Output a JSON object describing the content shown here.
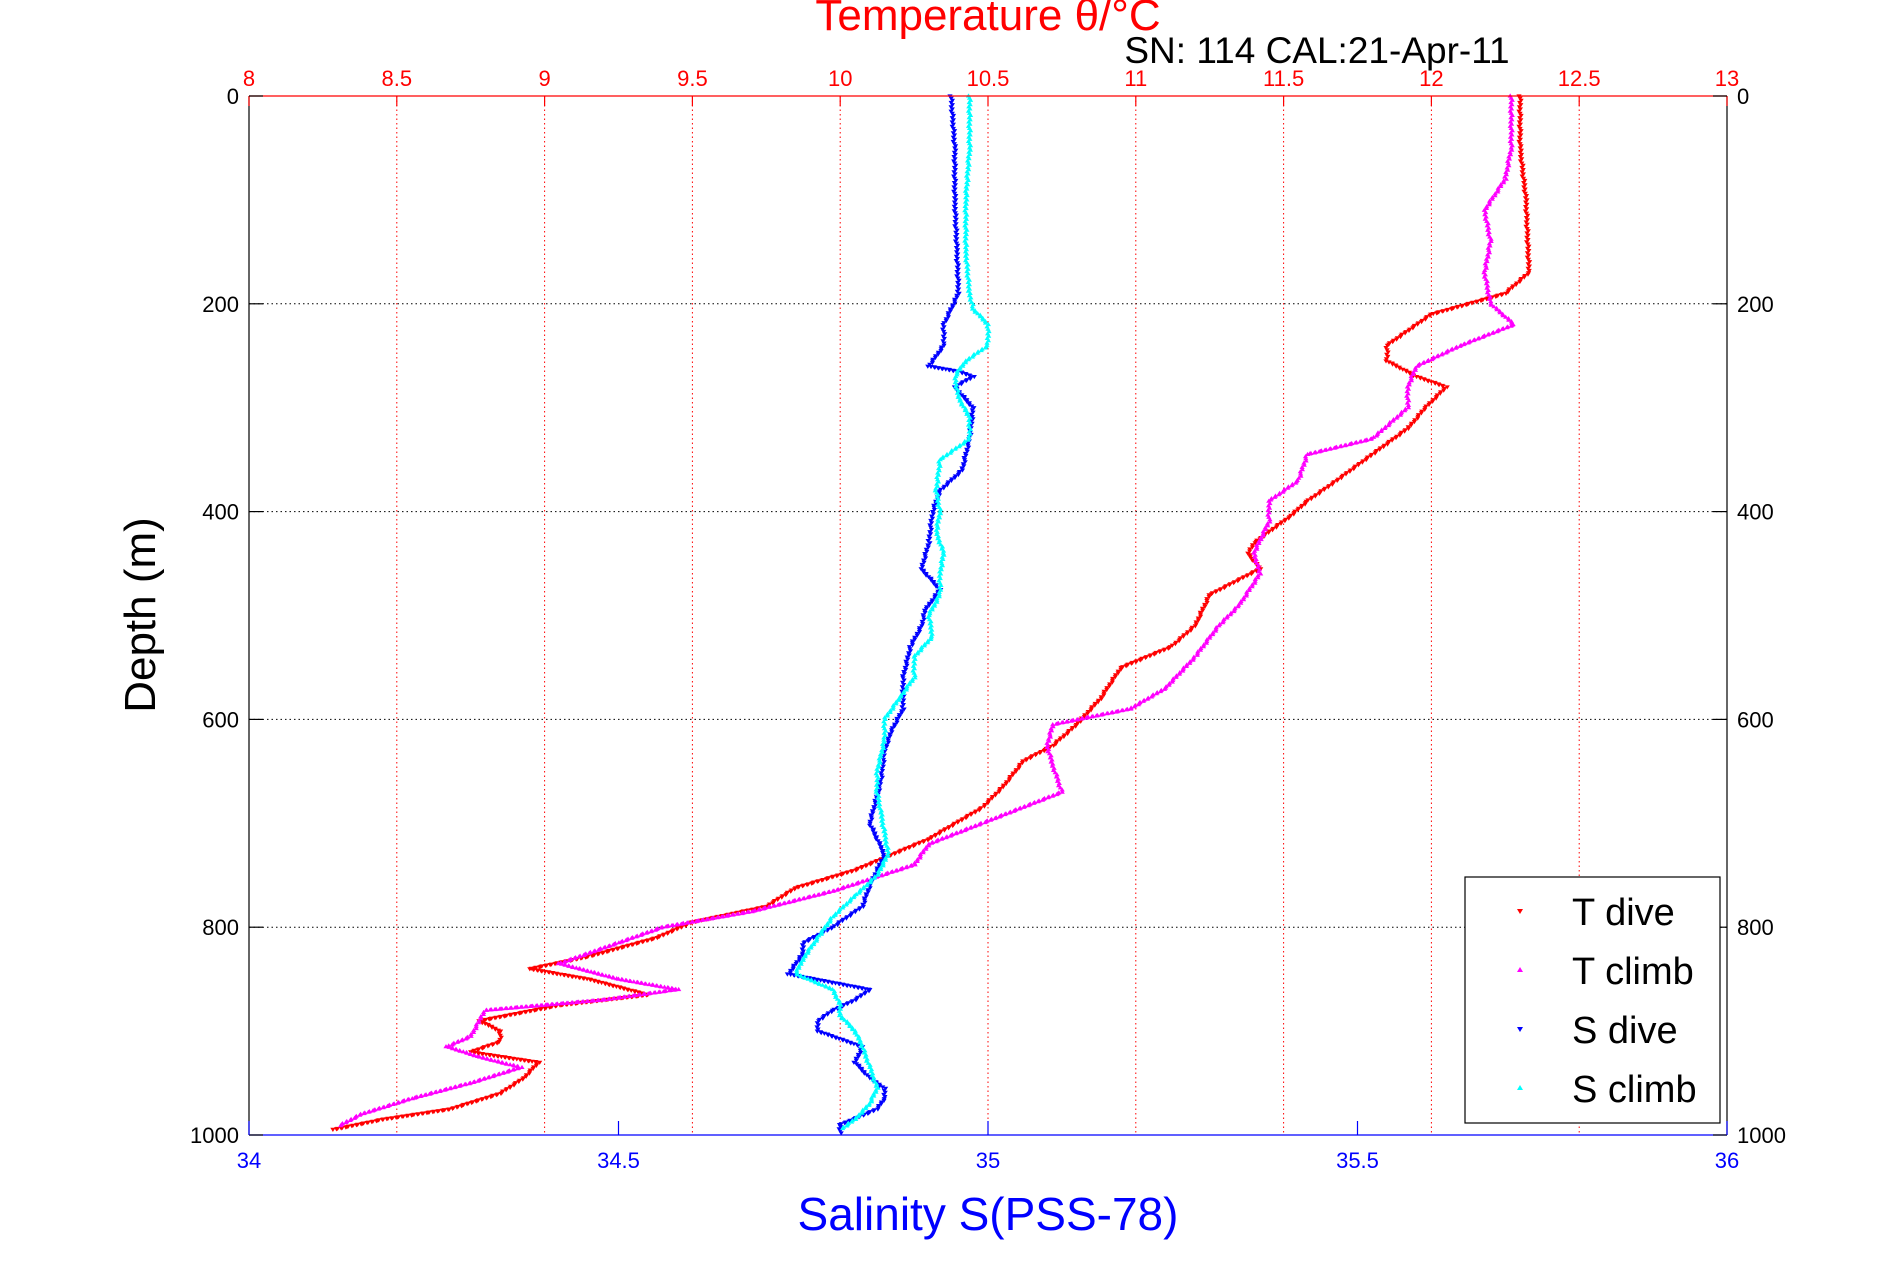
{
  "chart_data": {
    "type": "scatter",
    "title": "Temperature θ/°C",
    "subtitle": "SN: 114  CAL:21-Apr-11",
    "xlabel": "Salinity S(PSS-78)",
    "ylabel": "Depth (m)",
    "x_top": {
      "label": "Temperature θ/°C",
      "range": [
        8,
        13
      ],
      "ticks": [
        "8",
        "8.5",
        "9",
        "9.5",
        "10",
        "10.5",
        "11",
        "11.5",
        "12",
        "12.5",
        "13"
      ]
    },
    "x_bottom": {
      "label": "Salinity S(PSS-78)",
      "range": [
        34,
        36
      ],
      "ticks": [
        "34",
        "34.5",
        "35",
        "35.5",
        "36"
      ]
    },
    "y": {
      "label": "Depth (m)",
      "range": [
        0,
        1000
      ],
      "reversed": true,
      "ticks": [
        "0",
        "200",
        "400",
        "600",
        "800",
        "1000"
      ]
    },
    "grid": true,
    "legend_position": "bottom-right",
    "series": [
      {
        "name": "T dive",
        "axis": "temperature",
        "color": "#ff0000",
        "marker": "triangle-down",
        "points": [
          [
            12.3,
            0
          ],
          [
            12.3,
            50
          ],
          [
            12.32,
            100
          ],
          [
            12.33,
            170
          ],
          [
            12.25,
            190
          ],
          [
            12.0,
            210
          ],
          [
            11.85,
            240
          ],
          [
            11.85,
            255
          ],
          [
            11.95,
            270
          ],
          [
            12.05,
            280
          ],
          [
            11.98,
            300
          ],
          [
            11.92,
            320
          ],
          [
            11.8,
            345
          ],
          [
            11.68,
            370
          ],
          [
            11.58,
            390
          ],
          [
            11.52,
            405
          ],
          [
            11.4,
            430
          ],
          [
            11.38,
            440
          ],
          [
            11.42,
            455
          ],
          [
            11.25,
            480
          ],
          [
            11.2,
            510
          ],
          [
            11.12,
            530
          ],
          [
            10.95,
            550
          ],
          [
            10.88,
            580
          ],
          [
            10.8,
            605
          ],
          [
            10.72,
            625
          ],
          [
            10.62,
            640
          ],
          [
            10.55,
            665
          ],
          [
            10.48,
            685
          ],
          [
            10.3,
            715
          ],
          [
            10.05,
            745
          ],
          [
            9.85,
            762
          ],
          [
            9.75,
            780
          ],
          [
            9.5,
            795
          ],
          [
            9.38,
            810
          ],
          [
            9.15,
            828
          ],
          [
            8.95,
            840
          ],
          [
            9.15,
            850
          ],
          [
            9.35,
            865
          ],
          [
            9.05,
            875
          ],
          [
            8.78,
            890
          ],
          [
            8.85,
            900
          ],
          [
            8.85,
            910
          ],
          [
            8.75,
            920
          ],
          [
            8.98,
            930
          ],
          [
            8.93,
            945
          ],
          [
            8.85,
            960
          ],
          [
            8.68,
            975
          ],
          [
            8.45,
            985
          ],
          [
            8.28,
            995
          ]
        ]
      },
      {
        "name": "T climb",
        "axis": "temperature",
        "color": "#ff00ff",
        "marker": "triangle-up",
        "points": [
          [
            12.27,
            0
          ],
          [
            12.27,
            50
          ],
          [
            12.25,
            80
          ],
          [
            12.18,
            110
          ],
          [
            12.2,
            140
          ],
          [
            12.18,
            170
          ],
          [
            12.2,
            200
          ],
          [
            12.28,
            220
          ],
          [
            12.1,
            240
          ],
          [
            11.95,
            260
          ],
          [
            11.92,
            280
          ],
          [
            11.92,
            300
          ],
          [
            11.8,
            330
          ],
          [
            11.58,
            345
          ],
          [
            11.55,
            370
          ],
          [
            11.45,
            390
          ],
          [
            11.45,
            410
          ],
          [
            11.4,
            440
          ],
          [
            11.42,
            460
          ],
          [
            11.35,
            490
          ],
          [
            11.28,
            510
          ],
          [
            11.2,
            540
          ],
          [
            11.1,
            570
          ],
          [
            10.98,
            590
          ],
          [
            10.72,
            605
          ],
          [
            10.7,
            625
          ],
          [
            10.72,
            645
          ],
          [
            10.75,
            670
          ],
          [
            10.48,
            700
          ],
          [
            10.3,
            720
          ],
          [
            10.25,
            740
          ],
          [
            9.98,
            765
          ],
          [
            9.7,
            785
          ],
          [
            9.4,
            800
          ],
          [
            9.25,
            815
          ],
          [
            9.05,
            835
          ],
          [
            9.25,
            850
          ],
          [
            9.45,
            860
          ],
          [
            9.2,
            870
          ],
          [
            8.8,
            880
          ],
          [
            8.78,
            890
          ],
          [
            8.75,
            905
          ],
          [
            8.67,
            915
          ],
          [
            8.78,
            925
          ],
          [
            8.92,
            935
          ],
          [
            8.75,
            950
          ],
          [
            8.55,
            965
          ],
          [
            8.38,
            980
          ],
          [
            8.3,
            992
          ]
        ]
      },
      {
        "name": "S dive",
        "axis": "salinity",
        "color": "#0000ff",
        "marker": "triangle-down",
        "points": [
          [
            34.95,
            0
          ],
          [
            34.955,
            50
          ],
          [
            34.955,
            100
          ],
          [
            34.958,
            150
          ],
          [
            34.96,
            190
          ],
          [
            34.94,
            220
          ],
          [
            34.94,
            240
          ],
          [
            34.92,
            260
          ],
          [
            34.96,
            265
          ],
          [
            34.98,
            270
          ],
          [
            34.955,
            280
          ],
          [
            34.98,
            300
          ],
          [
            34.975,
            330
          ],
          [
            34.965,
            360
          ],
          [
            34.935,
            380
          ],
          [
            34.925,
            400
          ],
          [
            34.92,
            430
          ],
          [
            34.91,
            455
          ],
          [
            34.935,
            475
          ],
          [
            34.915,
            495
          ],
          [
            34.91,
            510
          ],
          [
            34.895,
            530
          ],
          [
            34.885,
            560
          ],
          [
            34.885,
            590
          ],
          [
            34.87,
            610
          ],
          [
            34.86,
            630
          ],
          [
            34.855,
            660
          ],
          [
            34.84,
            700
          ],
          [
            34.86,
            730
          ],
          [
            34.84,
            760
          ],
          [
            34.83,
            780
          ],
          [
            34.79,
            800
          ],
          [
            34.75,
            815
          ],
          [
            34.75,
            825
          ],
          [
            34.74,
            835
          ],
          [
            34.73,
            845
          ],
          [
            34.84,
            860
          ],
          [
            34.82,
            870
          ],
          [
            34.79,
            880
          ],
          [
            34.77,
            890
          ],
          [
            34.77,
            900
          ],
          [
            34.83,
            915
          ],
          [
            34.82,
            930
          ],
          [
            34.84,
            945
          ],
          [
            34.86,
            955
          ],
          [
            34.86,
            965
          ],
          [
            34.85,
            975
          ],
          [
            34.8,
            990
          ],
          [
            34.8,
            1000
          ]
        ]
      },
      {
        "name": "S climb",
        "axis": "salinity",
        "color": "#00ffff",
        "marker": "triangle-up",
        "points": [
          [
            34.975,
            0
          ],
          [
            34.975,
            50
          ],
          [
            34.97,
            100
          ],
          [
            34.97,
            150
          ],
          [
            34.975,
            190
          ],
          [
            34.98,
            205
          ],
          [
            35.0,
            220
          ],
          [
            35.0,
            240
          ],
          [
            34.97,
            255
          ],
          [
            34.955,
            270
          ],
          [
            34.96,
            290
          ],
          [
            34.975,
            310
          ],
          [
            34.975,
            330
          ],
          [
            34.935,
            350
          ],
          [
            34.93,
            380
          ],
          [
            34.935,
            400
          ],
          [
            34.93,
            420
          ],
          [
            34.94,
            440
          ],
          [
            34.935,
            460
          ],
          [
            34.935,
            480
          ],
          [
            34.92,
            500
          ],
          [
            34.925,
            520
          ],
          [
            34.9,
            540
          ],
          [
            34.9,
            560
          ],
          [
            34.88,
            580
          ],
          [
            34.86,
            600
          ],
          [
            34.86,
            620
          ],
          [
            34.85,
            650
          ],
          [
            34.85,
            670
          ],
          [
            34.855,
            690
          ],
          [
            34.86,
            710
          ],
          [
            34.865,
            730
          ],
          [
            34.85,
            750
          ],
          [
            34.82,
            770
          ],
          [
            34.79,
            790
          ],
          [
            34.77,
            810
          ],
          [
            34.75,
            830
          ],
          [
            34.74,
            845
          ],
          [
            34.79,
            860
          ],
          [
            34.8,
            875
          ],
          [
            34.8,
            885
          ],
          [
            34.82,
            900
          ],
          [
            34.83,
            915
          ],
          [
            34.84,
            935
          ],
          [
            34.85,
            955
          ],
          [
            34.84,
            970
          ],
          [
            34.82,
            985
          ],
          [
            34.8,
            995
          ]
        ]
      }
    ]
  }
}
